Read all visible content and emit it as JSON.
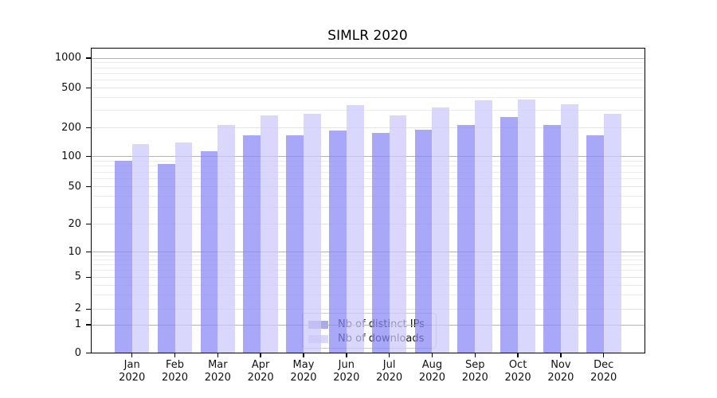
{
  "chart_data": {
    "type": "bar",
    "title": "SIMLR 2020",
    "months": [
      "Jan",
      "Feb",
      "Mar",
      "Apr",
      "May",
      "Jun",
      "Jul",
      "Aug",
      "Sep",
      "Oct",
      "Nov",
      "Dec"
    ],
    "year": "2020",
    "series": [
      {
        "name": "Nb of distinct IPs",
        "color": "rgba(136,133,245,0.72)",
        "values": [
          91,
          85,
          113,
          167,
          167,
          188,
          177,
          189,
          212,
          255,
          212,
          168
        ]
      },
      {
        "name": "Nb of downloads",
        "color": "rgba(202,200,249,0.72)",
        "values": [
          136,
          141,
          212,
          268,
          278,
          340,
          268,
          322,
          379,
          384,
          346,
          278
        ]
      }
    ],
    "y_ticks": [
      0,
      1,
      2,
      5,
      10,
      20,
      50,
      100,
      200,
      500,
      1000
    ],
    "scale": "symlog",
    "ylim": [
      0,
      1300
    ],
    "grid": true,
    "legend_position": "lower center"
  }
}
